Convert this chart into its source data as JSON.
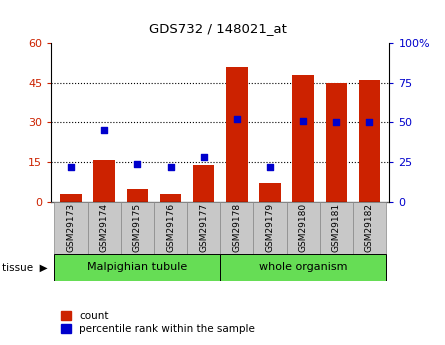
{
  "title": "GDS732 / 148021_at",
  "categories": [
    "GSM29173",
    "GSM29174",
    "GSM29175",
    "GSM29176",
    "GSM29177",
    "GSM29178",
    "GSM29179",
    "GSM29180",
    "GSM29181",
    "GSM29182"
  ],
  "counts": [
    3,
    16,
    5,
    3,
    14,
    51,
    7,
    48,
    45,
    46
  ],
  "percentiles": [
    22,
    45,
    24,
    22,
    28,
    52,
    22,
    51,
    50,
    50
  ],
  "bar_color": "#cc2200",
  "dot_color": "#0000cc",
  "ylim_left": [
    0,
    60
  ],
  "ylim_right": [
    0,
    100
  ],
  "yticks_left": [
    0,
    15,
    30,
    45,
    60
  ],
  "yticks_right": [
    0,
    25,
    50,
    75,
    100
  ],
  "ytick_labels_left": [
    "0",
    "15",
    "30",
    "45",
    "60"
  ],
  "ytick_labels_right": [
    "0",
    "25",
    "50",
    "75",
    "100%"
  ],
  "tissue_bg_color": "#66dd55",
  "bar_width": 0.65,
  "legend_items": [
    "count",
    "percentile rank within the sample"
  ],
  "cell_bg_color": "#c8c8c8",
  "cell_border_color": "#888888"
}
